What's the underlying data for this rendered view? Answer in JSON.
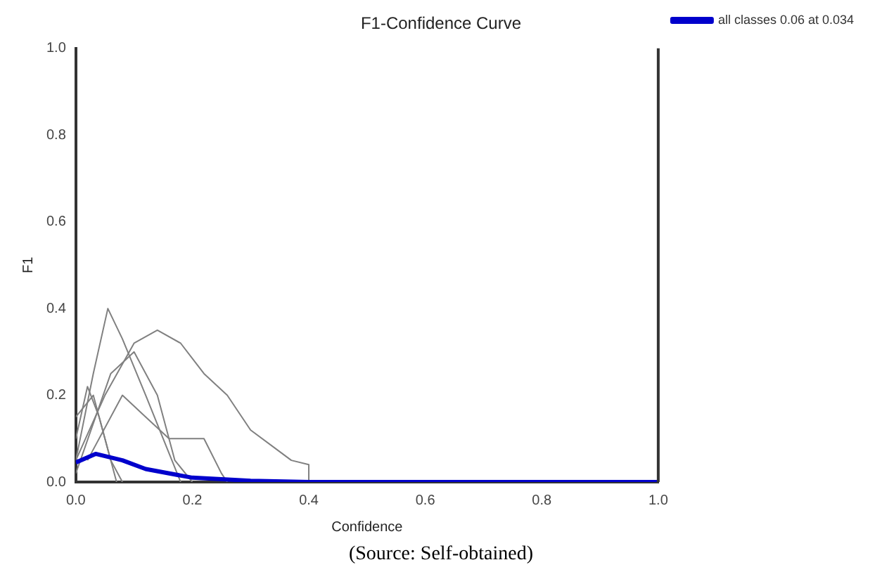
{
  "chart_data": {
    "type": "line",
    "title": "F1-Confidence Curve",
    "xlabel": "Confidence",
    "ylabel": "F1",
    "xlim": [
      0,
      1
    ],
    "ylim": [
      0,
      1
    ],
    "xticks": [
      {
        "value": 0,
        "label": "0.0"
      },
      {
        "value": 0.2,
        "label": "0.2"
      },
      {
        "value": 0.4,
        "label": "0.4"
      },
      {
        "value": 0.6,
        "label": "0.6"
      },
      {
        "value": 0.8,
        "label": "0.8"
      },
      {
        "value": 1,
        "label": "1.0"
      }
    ],
    "yticks": [
      {
        "value": 0,
        "label": "0.0"
      },
      {
        "value": 0.2,
        "label": "0.2"
      },
      {
        "value": 0.4,
        "label": "0.4"
      },
      {
        "value": 0.6,
        "label": "0.6"
      },
      {
        "value": 0.8,
        "label": "0.8"
      },
      {
        "value": 1,
        "label": "1.0"
      }
    ],
    "grid": false,
    "legend": "top right",
    "marker": "none",
    "line_style": "solid",
    "series": [
      {
        "color": "#808080",
        "x": [
          0,
          0.05,
          0.1,
          0.14,
          0.18,
          0.22,
          0.26,
          0.3,
          0.34,
          0.37,
          0.4,
          0.4
        ],
        "values": [
          0.05,
          0.2,
          0.32,
          0.35,
          0.32,
          0.25,
          0.2,
          0.12,
          0.08,
          0.05,
          0.04,
          0
        ]
      },
      {
        "color": "#808080",
        "x": [
          0,
          0.03,
          0.055,
          0.08,
          0.12,
          0.15,
          0.18
        ],
        "values": [
          0.05,
          0.25,
          0.4,
          0.33,
          0.2,
          0.1,
          0
        ]
      },
      {
        "color": "#808080",
        "x": [
          0,
          0.02,
          0.04,
          0.06,
          0.08
        ],
        "values": [
          0.1,
          0.22,
          0.15,
          0.05,
          0
        ]
      },
      {
        "color": "#808080",
        "x": [
          0,
          0.06,
          0.1,
          0.14,
          0.17,
          0.2
        ],
        "values": [
          0.02,
          0.25,
          0.3,
          0.2,
          0.05,
          0
        ]
      },
      {
        "color": "#808080",
        "x": [
          0.02,
          0.08,
          0.12,
          0.16,
          0.22,
          0.25,
          0.26
        ],
        "values": [
          0.05,
          0.2,
          0.15,
          0.1,
          0.1,
          0.02,
          0
        ]
      },
      {
        "color": "#808080",
        "x": [
          0,
          0.03,
          0.05,
          0.07
        ],
        "values": [
          0.15,
          0.2,
          0.1,
          0
        ]
      },
      {
        "name": "all classes 0.06 at 0.034",
        "color": "#0000cc",
        "x": [
          0,
          0.034,
          0.08,
          0.12,
          0.2,
          0.3,
          0.4,
          1
        ],
        "values": [
          0.045,
          0.065,
          0.05,
          0.03,
          0.01,
          0.003,
          0,
          0
        ]
      }
    ],
    "annotations": [
      "(Source: Self-obtained)"
    ]
  }
}
